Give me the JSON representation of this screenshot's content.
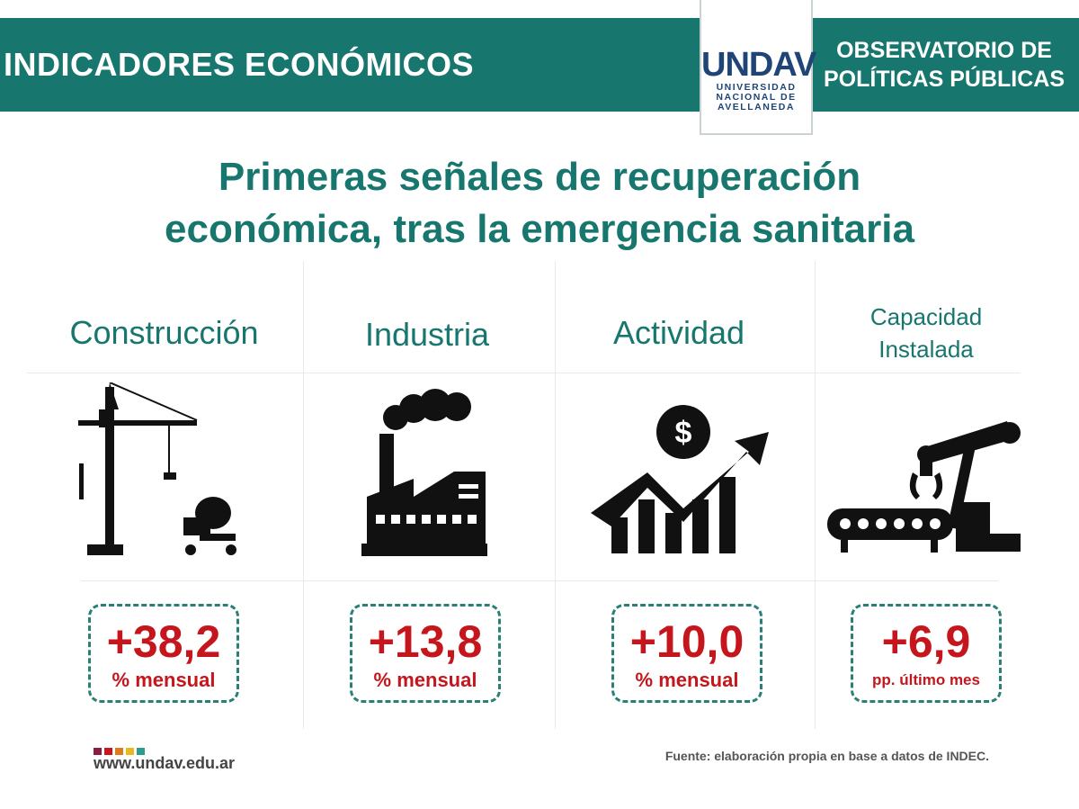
{
  "header": {
    "left_title": "INDICADORES ECONÓMICOS",
    "right_line1": "OBSERVATORIO DE",
    "right_line2": "POLÍTICAS PÚBLICAS"
  },
  "logo": {
    "mark": "UNDAV",
    "line1": "UNIVERSIDAD",
    "line2": "NACIONAL DE",
    "line3": "AVELLANEDA"
  },
  "title": {
    "line1": "Primeras señales de recuperación",
    "line2": "económica, tras la emergencia sanitaria"
  },
  "indicators": [
    {
      "label": "Construcción",
      "value": "+38,2",
      "unit": "% mensual",
      "icon": "crane-icon"
    },
    {
      "label": "Industria",
      "value": "+13,8",
      "unit": "% mensual",
      "icon": "factory-icon"
    },
    {
      "label": "Actividad",
      "value": "+10,0",
      "unit": "% mensual",
      "icon": "growth-chart-icon"
    },
    {
      "label_line1": "Capacidad",
      "label_line2": "Instalada",
      "value": "+6,9",
      "unit": "pp. último mes",
      "icon": "robot-arm-icon"
    }
  ],
  "footer": {
    "website": "www.undav.edu.ar",
    "source": "Fuente: elaboración propia en base a datos de INDEC."
  },
  "colors": {
    "brand_teal": "#17766d",
    "value_red": "#c4161c",
    "logo_blue": "#1f4577",
    "dots": [
      "#8b1d3f",
      "#c4161c",
      "#e07a1f",
      "#e8b921",
      "#2a9d8f"
    ]
  }
}
